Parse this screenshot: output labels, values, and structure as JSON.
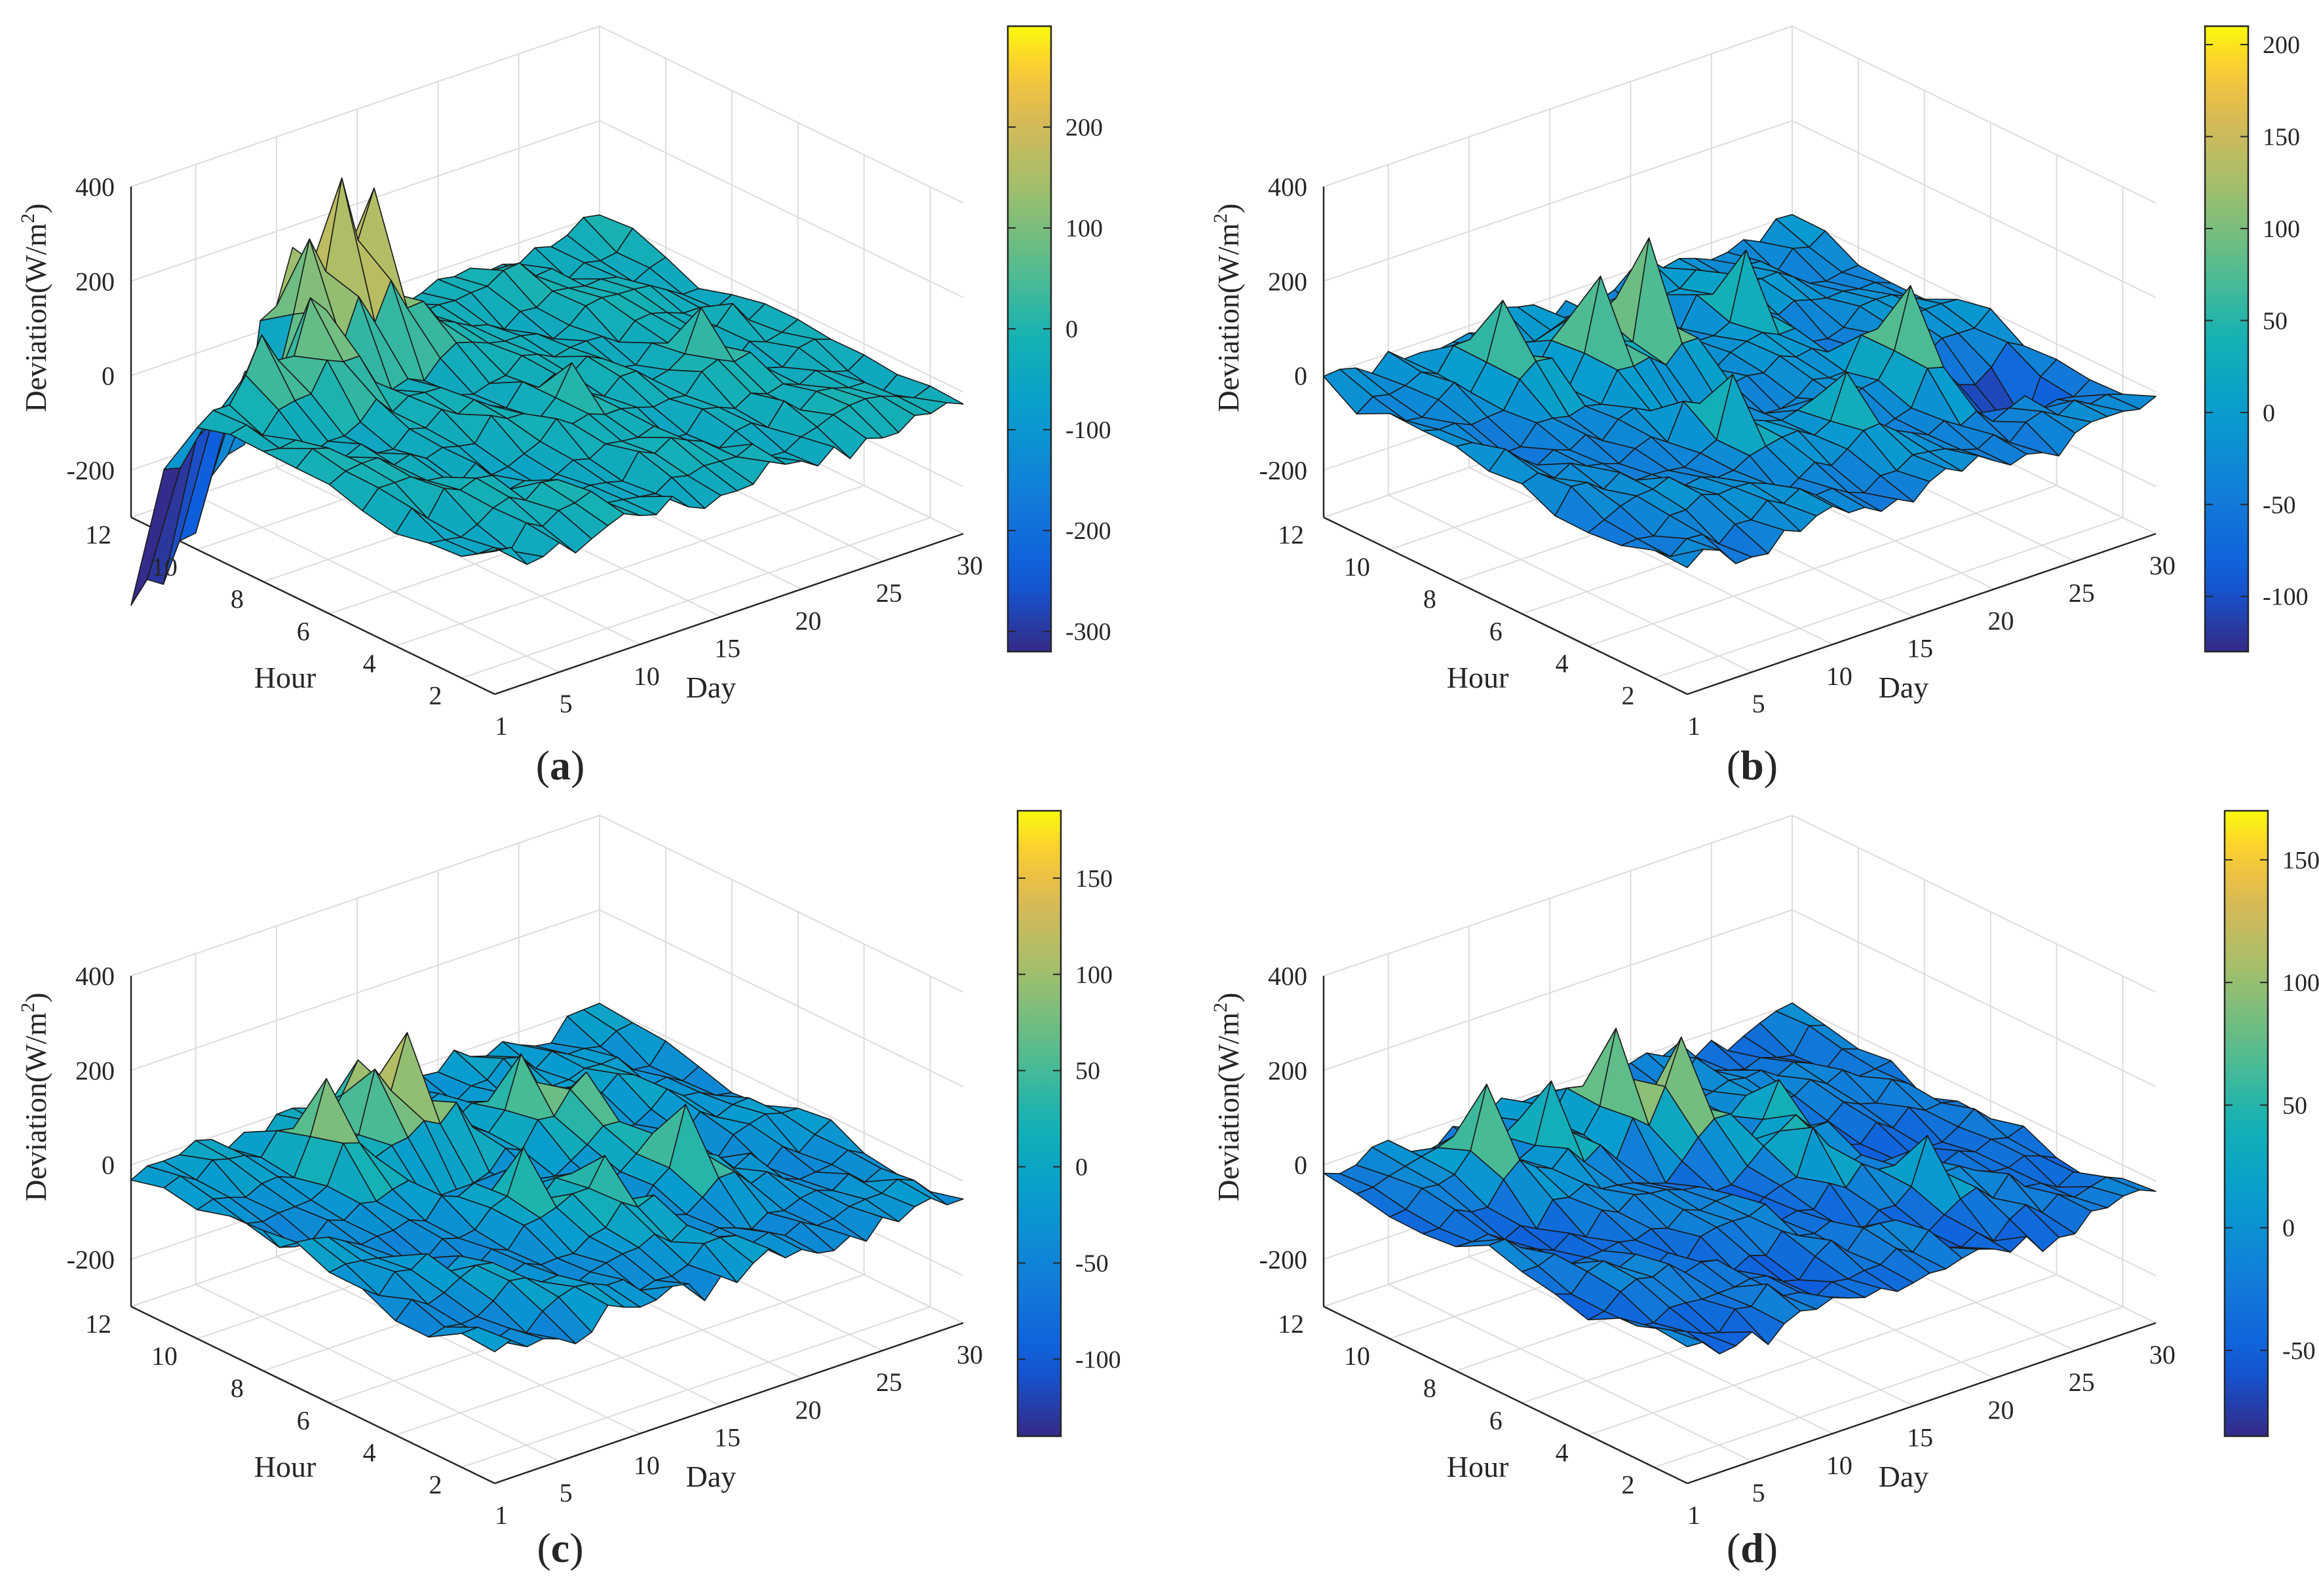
{
  "chart_data": [
    {
      "type": "surface3d",
      "panel_label": "a",
      "xlabel": "Day",
      "ylabel": "Hour",
      "zlabel_main": "Deviation(W/m",
      "zlabel_sup": "2",
      "zlabel_close": ")",
      "x_ticks": [
        "1",
        "5",
        "10",
        "15",
        "20",
        "25",
        "30"
      ],
      "y_ticks": [
        "2",
        "4",
        "6",
        "8",
        "10",
        "12"
      ],
      "z_ticks": [
        "-200",
        "0",
        "200",
        "400"
      ],
      "xlim": [
        1,
        30
      ],
      "ylim": [
        1,
        12
      ],
      "zlim": [
        -300,
        400
      ],
      "colorbar": {
        "ticks": [
          "-300",
          "-200",
          "-100",
          "0",
          "100",
          "200"
        ],
        "range": [
          -320,
          300
        ]
      },
      "peaks": [
        {
          "day": 8,
          "hour": 10,
          "value": 160
        },
        {
          "day": 10,
          "hour": 11,
          "value": 230
        },
        {
          "day": 12,
          "hour": 11,
          "value": 300
        },
        {
          "day": 14,
          "hour": 11,
          "value": 240
        },
        {
          "day": 5,
          "hour": 10,
          "value": 90
        },
        {
          "day": 16,
          "hour": 6,
          "value": 60
        },
        {
          "day": 24,
          "hour": 6,
          "value": 70
        }
      ],
      "troughs": [
        {
          "day": 1,
          "hour": 12,
          "value": -300
        },
        {
          "day": 3,
          "hour": 12,
          "value": -280
        },
        {
          "day": 6,
          "hour": 12,
          "value": -260
        }
      ]
    },
    {
      "type": "surface3d",
      "panel_label": "b",
      "xlabel": "Day",
      "ylabel": "Hour",
      "zlabel_main": "Deviation(W/m",
      "zlabel_sup": "2",
      "zlabel_close": ")",
      "x_ticks": [
        "1",
        "5",
        "10",
        "15",
        "20",
        "25",
        "30"
      ],
      "y_ticks": [
        "2",
        "4",
        "6",
        "8",
        "10",
        "12"
      ],
      "z_ticks": [
        "-200",
        "0",
        "200",
        "400"
      ],
      "xlim": [
        1,
        30
      ],
      "ylim": [
        1,
        12
      ],
      "zlim": [
        -300,
        400
      ],
      "colorbar": {
        "ticks": [
          "-100",
          "-50",
          "0",
          "50",
          "100",
          "150",
          "200"
        ],
        "range": [
          -130,
          210
        ]
      },
      "peaks": [
        {
          "day": 8,
          "hour": 10,
          "value": 140
        },
        {
          "day": 12,
          "hour": 9,
          "value": 200
        },
        {
          "day": 15,
          "hour": 9,
          "value": 190
        },
        {
          "day": 21,
          "hour": 9,
          "value": 130
        },
        {
          "day": 23,
          "hour": 5,
          "value": 170
        },
        {
          "day": 12,
          "hour": 5,
          "value": 90
        },
        {
          "day": 17,
          "hour": 4,
          "value": 80
        }
      ],
      "troughs": [
        {
          "day": 26,
          "hour": 4,
          "value": -130
        }
      ]
    },
    {
      "type": "surface3d",
      "panel_label": "c",
      "xlabel": "Day",
      "ylabel": "Hour",
      "zlabel_main": "Deviation(W/m",
      "zlabel_sup": "2",
      "zlabel_close": ")",
      "x_ticks": [
        "1",
        "5",
        "10",
        "15",
        "20",
        "25",
        "30"
      ],
      "y_ticks": [
        "2",
        "4",
        "6",
        "8",
        "10",
        "12"
      ],
      "z_ticks": [
        "-200",
        "0",
        "200",
        "400"
      ],
      "xlim": [
        1,
        30
      ],
      "ylim": [
        1,
        12
      ],
      "zlim": [
        -300,
        400
      ],
      "colorbar": {
        "ticks": [
          "-100",
          "-50",
          "0",
          "50",
          "100",
          "150"
        ],
        "range": [
          -140,
          185
        ]
      },
      "peaks": [
        {
          "day": 9,
          "hour": 10,
          "value": 170
        },
        {
          "day": 12,
          "hour": 10,
          "value": 130
        },
        {
          "day": 14,
          "hour": 10,
          "value": 180
        },
        {
          "day": 19,
          "hour": 9,
          "value": 120
        },
        {
          "day": 21,
          "hour": 8,
          "value": 110
        },
        {
          "day": 21,
          "hour": 5,
          "value": 120
        },
        {
          "day": 16,
          "hour": 5,
          "value": 90
        },
        {
          "day": 13,
          "hour": 6,
          "value": 70
        }
      ],
      "troughs": []
    },
    {
      "type": "surface3d",
      "panel_label": "d",
      "xlabel": "Day",
      "ylabel": "Hour",
      "zlabel_main": "Deviation(W/m",
      "zlabel_sup": "2",
      "zlabel_close": ")",
      "x_ticks": [
        "1",
        "5",
        "10",
        "15",
        "20",
        "25",
        "30"
      ],
      "y_ticks": [
        "2",
        "4",
        "6",
        "8",
        "10",
        "12"
      ],
      "z_ticks": [
        "-200",
        "0",
        "200",
        "400"
      ],
      "xlim": [
        1,
        30
      ],
      "ylim": [
        1,
        12
      ],
      "zlim": [
        -300,
        400
      ],
      "colorbar": {
        "ticks": [
          "-50",
          "0",
          "50",
          "100",
          "150"
        ],
        "range": [
          -85,
          170
        ]
      },
      "peaks": [
        {
          "day": 7,
          "hour": 10,
          "value": 130
        },
        {
          "day": 11,
          "hour": 10,
          "value": 120
        },
        {
          "day": 15,
          "hour": 10,
          "value": 160
        },
        {
          "day": 17,
          "hour": 9,
          "value": 150
        },
        {
          "day": 21,
          "hour": 8,
          "value": 80
        },
        {
          "day": 19,
          "hour": 6,
          "value": 70
        },
        {
          "day": 22,
          "hour": 4,
          "value": 60
        }
      ],
      "troughs": []
    }
  ]
}
